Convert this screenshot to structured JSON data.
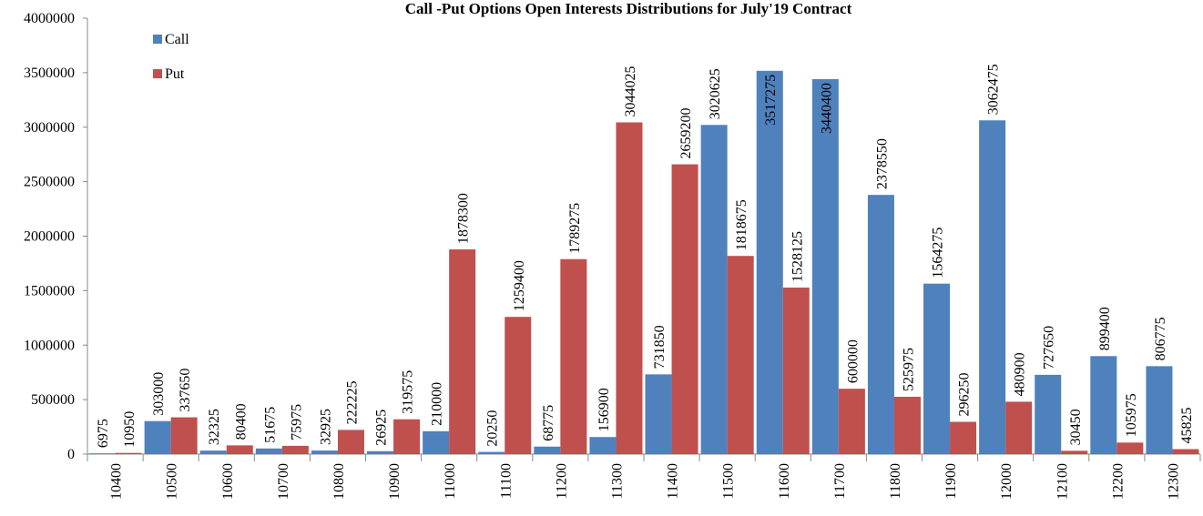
{
  "chart_data": {
    "type": "bar",
    "title": "Call -Put Options Open Interests Distributions for July'19 Contract",
    "categories": [
      "10400",
      "10500",
      "10600",
      "10700",
      "10800",
      "10900",
      "11000",
      "11100",
      "11200",
      "11300",
      "11400",
      "11500",
      "11600",
      "11700",
      "11800",
      "11900",
      "12000",
      "12100",
      "12200",
      "12300"
    ],
    "series": [
      {
        "name": "Call",
        "color": "#4f81bd",
        "values": [
          6975,
          303000,
          32325,
          51675,
          32925,
          26925,
          210000,
          20250,
          68775,
          156900,
          731850,
          3020625,
          3517275,
          3440400,
          2378550,
          1564275,
          3062475,
          727650,
          899400,
          806775
        ]
      },
      {
        "name": "Put",
        "color": "#c0504d",
        "values": [
          10950,
          337650,
          80400,
          75975,
          222225,
          319575,
          1878300,
          1259400,
          1789275,
          3044025,
          2659200,
          1818675,
          1528125,
          600000,
          525975,
          296250,
          480900,
          30450,
          105975,
          45825
        ]
      }
    ],
    "ylim": [
      0,
      4000000
    ],
    "yticks": [
      0,
      500000,
      1000000,
      1500000,
      2000000,
      2500000,
      3000000,
      3500000,
      4000000
    ],
    "grid": false,
    "legend": "top-left"
  }
}
